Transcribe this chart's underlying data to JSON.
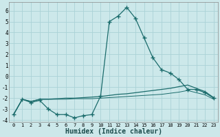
{
  "xlabel": "Humidex (Indice chaleur)",
  "bg_color": "#cce8ea",
  "grid_color": "#aad2d6",
  "line_color": "#1a6b6b",
  "xlim": [
    -0.5,
    23.5
  ],
  "ylim": [
    -4.2,
    6.8
  ],
  "yticks": [
    -4,
    -3,
    -2,
    -1,
    0,
    1,
    2,
    3,
    4,
    5,
    6
  ],
  "xticks": [
    0,
    1,
    2,
    3,
    4,
    5,
    6,
    7,
    8,
    9,
    10,
    11,
    12,
    13,
    14,
    15,
    16,
    17,
    18,
    19,
    20,
    21,
    22,
    23
  ],
  "series_main": [
    -3.5,
    -2.1,
    -2.4,
    -2.2,
    -3.0,
    -3.5,
    -3.5,
    -3.8,
    -3.6,
    -3.5,
    -1.8,
    5.0,
    5.5,
    6.3,
    5.3,
    3.5,
    1.7,
    0.6,
    0.3,
    -0.3,
    -1.2,
    -1.2,
    -1.5,
    -2.0
  ],
  "series_upper": [
    -3.5,
    -2.1,
    -2.3,
    -2.1,
    -2.1,
    -2.05,
    -2.0,
    -2.0,
    -1.95,
    -1.9,
    -1.85,
    -1.75,
    -1.65,
    -1.6,
    -1.5,
    -1.4,
    -1.3,
    -1.2,
    -1.1,
    -0.95,
    -0.8,
    -1.1,
    -1.4,
    -1.95
  ],
  "series_lower": [
    -3.5,
    -2.1,
    -2.3,
    -2.1,
    -2.1,
    -2.1,
    -2.1,
    -2.05,
    -2.05,
    -2.05,
    -2.0,
    -1.95,
    -1.9,
    -1.85,
    -1.8,
    -1.75,
    -1.7,
    -1.65,
    -1.55,
    -1.45,
    -1.3,
    -1.5,
    -1.7,
    -2.1
  ]
}
